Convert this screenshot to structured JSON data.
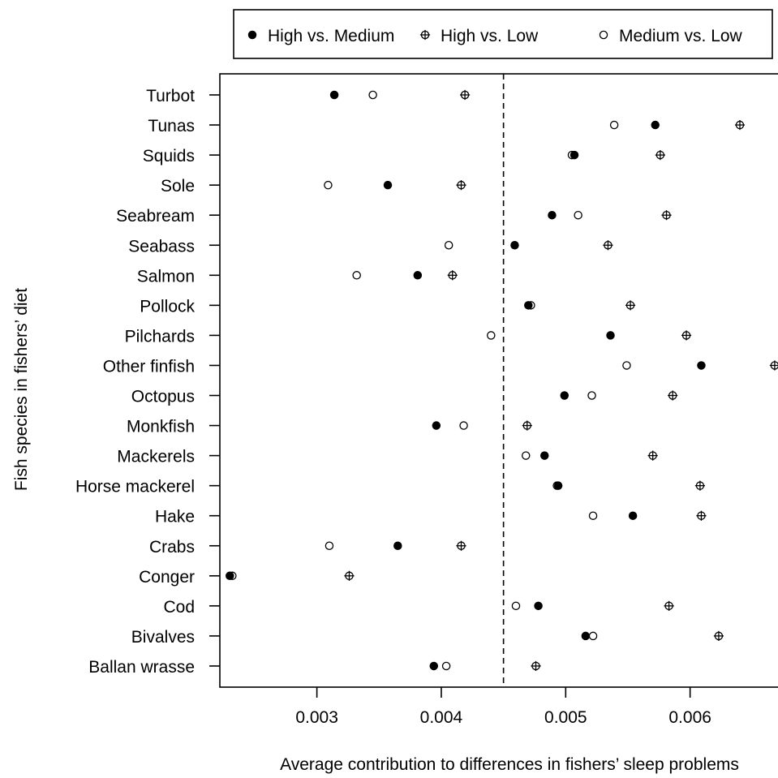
{
  "chart_data": {
    "type": "scatter",
    "xlabel": "Average contribution to differences in fishers’ sleep problems",
    "ylabel": "Fish species in fishers’ diet",
    "xlim": [
      0.00222,
      0.0067
    ],
    "x_ticks": [
      {
        "value": 0.003,
        "label": "0.003"
      },
      {
        "value": 0.004,
        "label": "0.004"
      },
      {
        "value": 0.005,
        "label": "0.005"
      },
      {
        "value": 0.006,
        "label": "0.006"
      }
    ],
    "reference_line": 0.0045,
    "legend_placement": "top",
    "categories": [
      "Turbot",
      "Tunas",
      "Squids",
      "Sole",
      "Seabream",
      "Seabass",
      "Salmon",
      "Pollock",
      "Pilchards",
      "Other finfish",
      "Octopus",
      "Monkfish",
      "Mackerels",
      "Horse mackerel",
      "Hake",
      "Crabs",
      "Conger",
      "Cod",
      "Bivalves",
      "Ballan wrasse"
    ],
    "series": [
      {
        "name": "High vs. Medium",
        "marker": "filled-circle",
        "values": [
          0.00314,
          0.00572,
          0.00507,
          0.00357,
          0.00489,
          0.00459,
          0.00381,
          0.0047,
          0.00536,
          0.00609,
          0.00499,
          0.00396,
          0.00483,
          0.00494,
          0.00554,
          0.00365,
          0.0023,
          0.00478,
          0.00516,
          0.00394
        ]
      },
      {
        "name": "High vs. Low",
        "marker": "crossed-circle",
        "values": [
          0.00419,
          0.0064,
          0.00576,
          0.00416,
          0.00581,
          0.00534,
          0.00409,
          0.00552,
          0.00597,
          0.00668,
          0.00586,
          0.00469,
          0.0057,
          0.00608,
          0.00609,
          0.00416,
          0.00326,
          0.00583,
          0.00623,
          0.00476
        ]
      },
      {
        "name": "Medium vs. Low",
        "marker": "open-circle",
        "values": [
          0.00345,
          0.00539,
          0.00505,
          0.00309,
          0.0051,
          0.00406,
          0.00332,
          0.00472,
          0.0044,
          0.00549,
          0.00521,
          0.00418,
          0.00468,
          0.00493,
          0.00522,
          0.0031,
          0.00232,
          0.0046,
          0.00522,
          0.00404
        ]
      }
    ]
  }
}
